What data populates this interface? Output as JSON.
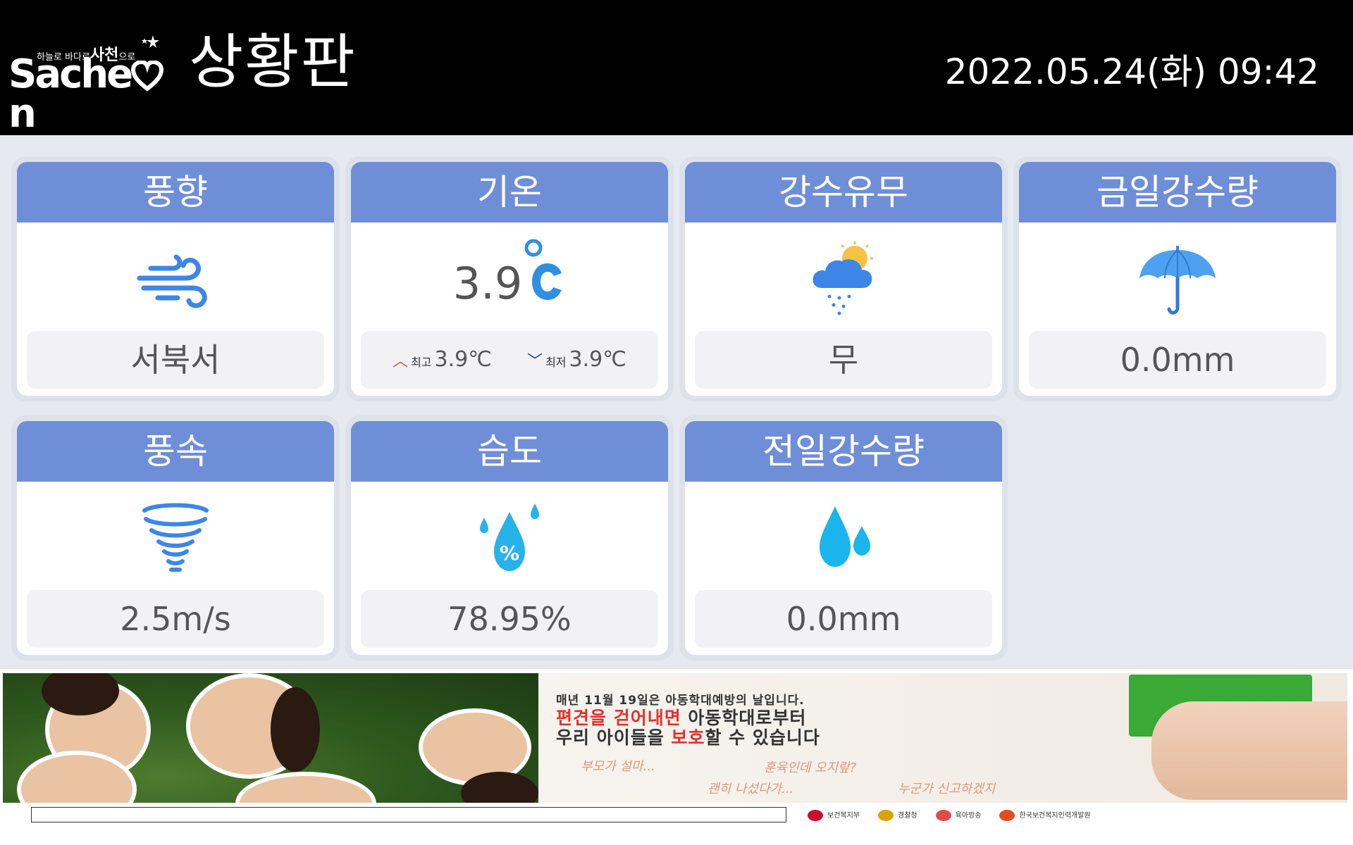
{
  "header": {
    "logo": {
      "tagline_prefix": "하늘로 바다로",
      "tagline_main": "사천",
      "tagline_suffix": "으로",
      "wordmark_left": "Sache",
      "wordmark_right": "n"
    },
    "title": "상황판",
    "datetime": "2022.05.24(화) 09:42"
  },
  "cards": {
    "wind_dir": {
      "title": "풍향",
      "icon": "wind-icon",
      "value": "서북서"
    },
    "temp": {
      "title": "기온",
      "icon": "celsius-icon",
      "value": "3.9",
      "max_label": "최고",
      "max_value": "3.9℃",
      "min_label": "최저",
      "min_value": "3.9℃"
    },
    "precip": {
      "title": "강수유무",
      "icon": "rain-cloud-sun-icon",
      "value": "무"
    },
    "today_rain": {
      "title": "금일강수량",
      "icon": "umbrella-icon",
      "value": "0.0mm"
    },
    "wind_speed": {
      "title": "풍속",
      "icon": "tornado-icon",
      "value": "2.5m/s"
    },
    "humidity": {
      "title": "습도",
      "icon": "humidity-drop-icon",
      "value": "78.95%"
    },
    "yesterday_rain": {
      "title": "전일강수량",
      "icon": "water-drops-icon",
      "value": "0.0mm"
    }
  },
  "banner": {
    "line1": "매년 11월 19일은 아동학대예방의 날입니다.",
    "line2_red": "편견을 걷어내면",
    "line2_rest": " 아동학대로부터",
    "line3_a": "우리 아이들을 ",
    "line3_red": "보호",
    "line3_b": "할 수 있습니다",
    "scribble1": "부모가 설마...",
    "scribble2": "훈육인데 오지랖?",
    "scribble3": "괜히 나섰다가...",
    "scribble4": "누군가 신고하겠지",
    "foot_logos": [
      "보건복지부",
      "경찰청",
      "육아방송",
      "한국보건복지인력개발원"
    ]
  }
}
